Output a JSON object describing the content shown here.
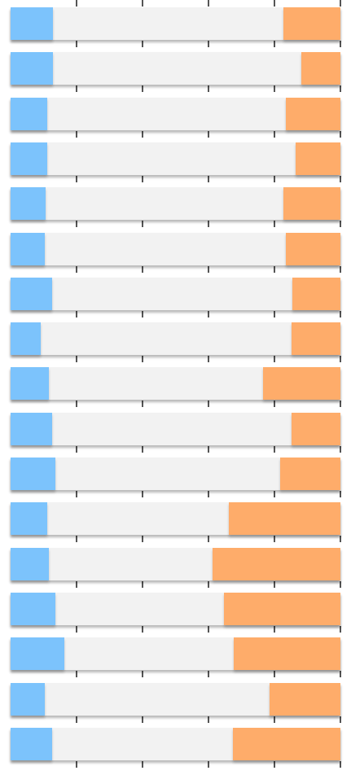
{
  "chart_data": {
    "type": "bar",
    "stacked": true,
    "orientation": "horizontal",
    "xlim": [
      0,
      100
    ],
    "grid": true,
    "legend": "none",
    "colors": {
      "left": "#7cc3fc",
      "middle": "#f2f2f2",
      "right": "#feac6a",
      "tick": "#555555"
    },
    "series": [
      {
        "values": [
          12.8,
          12.8,
          11.1,
          11.1,
          10.6,
          10.4,
          12.5,
          9.1,
          11.6,
          12.5,
          13.6,
          11.1,
          11.6,
          13.6,
          16.3,
          10.4,
          12.5
        ]
      },
      {
        "values": [
          69.9,
          75.3,
          72.4,
          75.3,
          72.1,
          73.1,
          73.0,
          76.2,
          64.9,
          72.6,
          68.1,
          55.0,
          49.6,
          51.1,
          51.4,
          68.1,
          54.8
        ]
      },
      {
        "values": [
          17.3,
          11.9,
          16.5,
          13.6,
          17.3,
          16.5,
          14.5,
          14.7,
          23.5,
          14.9,
          18.3,
          33.9,
          38.8,
          35.3,
          32.3,
          21.5,
          32.7
        ]
      }
    ]
  }
}
